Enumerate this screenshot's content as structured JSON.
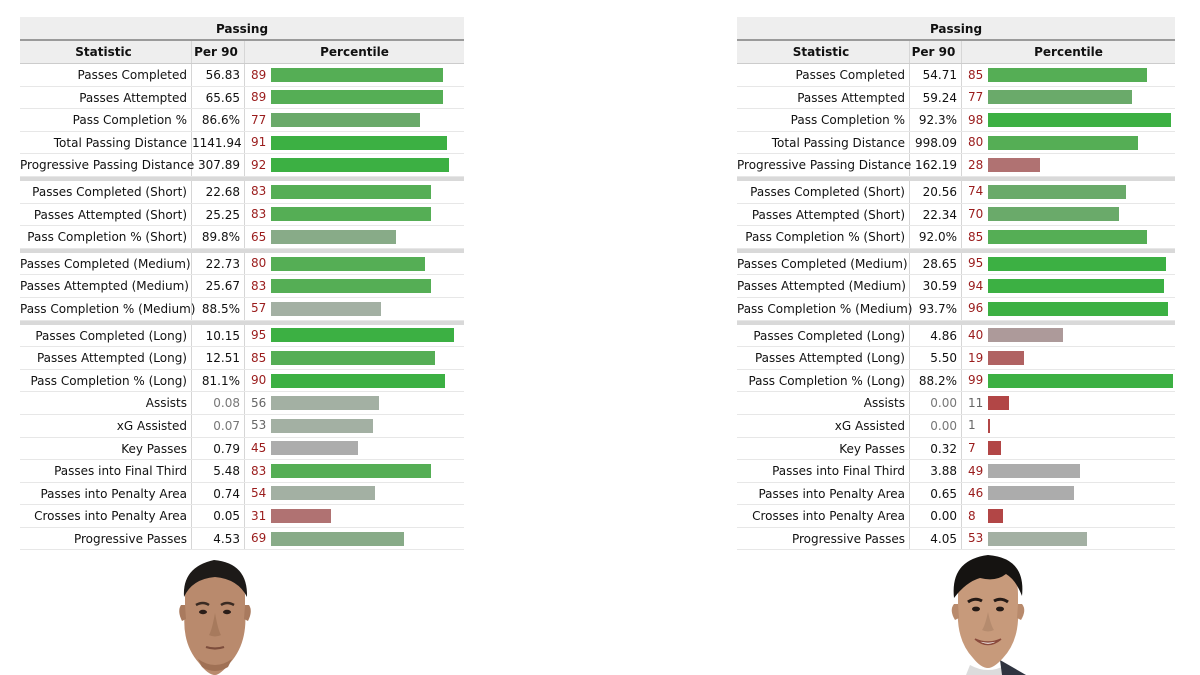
{
  "panels": [
    {
      "title": "Passing",
      "headers": {
        "stat": "Statistic",
        "per90": "Per 90",
        "pct": "Percentile"
      },
      "rows": [
        {
          "stat": "Passes Completed",
          "per90": "56.83",
          "pct": 89
        },
        {
          "stat": "Passes Attempted",
          "per90": "65.65",
          "pct": 89
        },
        {
          "stat": "Pass Completion %",
          "per90": "86.6%",
          "pct": 77
        },
        {
          "stat": "Total Passing Distance",
          "per90": "1141.94",
          "pct": 91
        },
        {
          "stat": "Progressive Passing Distance",
          "per90": "307.89",
          "pct": 92
        },
        {
          "stat": "Passes Completed (Short)",
          "per90": "22.68",
          "pct": 83,
          "sep": true
        },
        {
          "stat": "Passes Attempted (Short)",
          "per90": "25.25",
          "pct": 83
        },
        {
          "stat": "Pass Completion % (Short)",
          "per90": "89.8%",
          "pct": 65
        },
        {
          "stat": "Passes Completed (Medium)",
          "per90": "22.73",
          "pct": 80,
          "sep": true
        },
        {
          "stat": "Passes Attempted (Medium)",
          "per90": "25.67",
          "pct": 83
        },
        {
          "stat": "Pass Completion % (Medium)",
          "per90": "88.5%",
          "pct": 57
        },
        {
          "stat": "Passes Completed (Long)",
          "per90": "10.15",
          "pct": 95,
          "sep": true
        },
        {
          "stat": "Passes Attempted (Long)",
          "per90": "12.51",
          "pct": 85
        },
        {
          "stat": "Pass Completion % (Long)",
          "per90": "81.1%",
          "pct": 90
        },
        {
          "stat": "Assists",
          "per90": "0.08",
          "pct": 56,
          "dim": true
        },
        {
          "stat": "xG Assisted",
          "per90": "0.07",
          "pct": 53,
          "dim": true
        },
        {
          "stat": "Key Passes",
          "per90": "0.79",
          "pct": 45
        },
        {
          "stat": "Passes into Final Third",
          "per90": "5.48",
          "pct": 83
        },
        {
          "stat": "Passes into Penalty Area",
          "per90": "0.74",
          "pct": 54
        },
        {
          "stat": "Crosses into Penalty Area",
          "per90": "0.05",
          "pct": 31
        },
        {
          "stat": "Progressive Passes",
          "per90": "4.53",
          "pct": 69
        }
      ]
    },
    {
      "title": "Passing",
      "headers": {
        "stat": "Statistic",
        "per90": "Per 90",
        "pct": "Percentile"
      },
      "rows": [
        {
          "stat": "Passes Completed",
          "per90": "54.71",
          "pct": 85
        },
        {
          "stat": "Passes Attempted",
          "per90": "59.24",
          "pct": 77
        },
        {
          "stat": "Pass Completion %",
          "per90": "92.3%",
          "pct": 98
        },
        {
          "stat": "Total Passing Distance",
          "per90": "998.09",
          "pct": 80
        },
        {
          "stat": "Progressive Passing Distance",
          "per90": "162.19",
          "pct": 28
        },
        {
          "stat": "Passes Completed (Short)",
          "per90": "20.56",
          "pct": 74,
          "sep": true
        },
        {
          "stat": "Passes Attempted (Short)",
          "per90": "22.34",
          "pct": 70
        },
        {
          "stat": "Pass Completion % (Short)",
          "per90": "92.0%",
          "pct": 85
        },
        {
          "stat": "Passes Completed (Medium)",
          "per90": "28.65",
          "pct": 95,
          "sep": true
        },
        {
          "stat": "Passes Attempted (Medium)",
          "per90": "30.59",
          "pct": 94
        },
        {
          "stat": "Pass Completion % (Medium)",
          "per90": "93.7%",
          "pct": 96
        },
        {
          "stat": "Passes Completed (Long)",
          "per90": "4.86",
          "pct": 40,
          "sep": true
        },
        {
          "stat": "Passes Attempted (Long)",
          "per90": "5.50",
          "pct": 19
        },
        {
          "stat": "Pass Completion % (Long)",
          "per90": "88.2%",
          "pct": 99
        },
        {
          "stat": "Assists",
          "per90": "0.00",
          "pct": 11,
          "dim": true
        },
        {
          "stat": "xG Assisted",
          "per90": "0.00",
          "pct": 1,
          "dim": true
        },
        {
          "stat": "Key Passes",
          "per90": "0.32",
          "pct": 7
        },
        {
          "stat": "Passes into Final Third",
          "per90": "3.88",
          "pct": 49
        },
        {
          "stat": "Passes into Penalty Area",
          "per90": "0.65",
          "pct": 46
        },
        {
          "stat": "Crosses into Penalty Area",
          "per90": "0.00",
          "pct": 8
        },
        {
          "stat": "Progressive Passes",
          "per90": "4.05",
          "pct": 53
        }
      ]
    }
  ]
}
